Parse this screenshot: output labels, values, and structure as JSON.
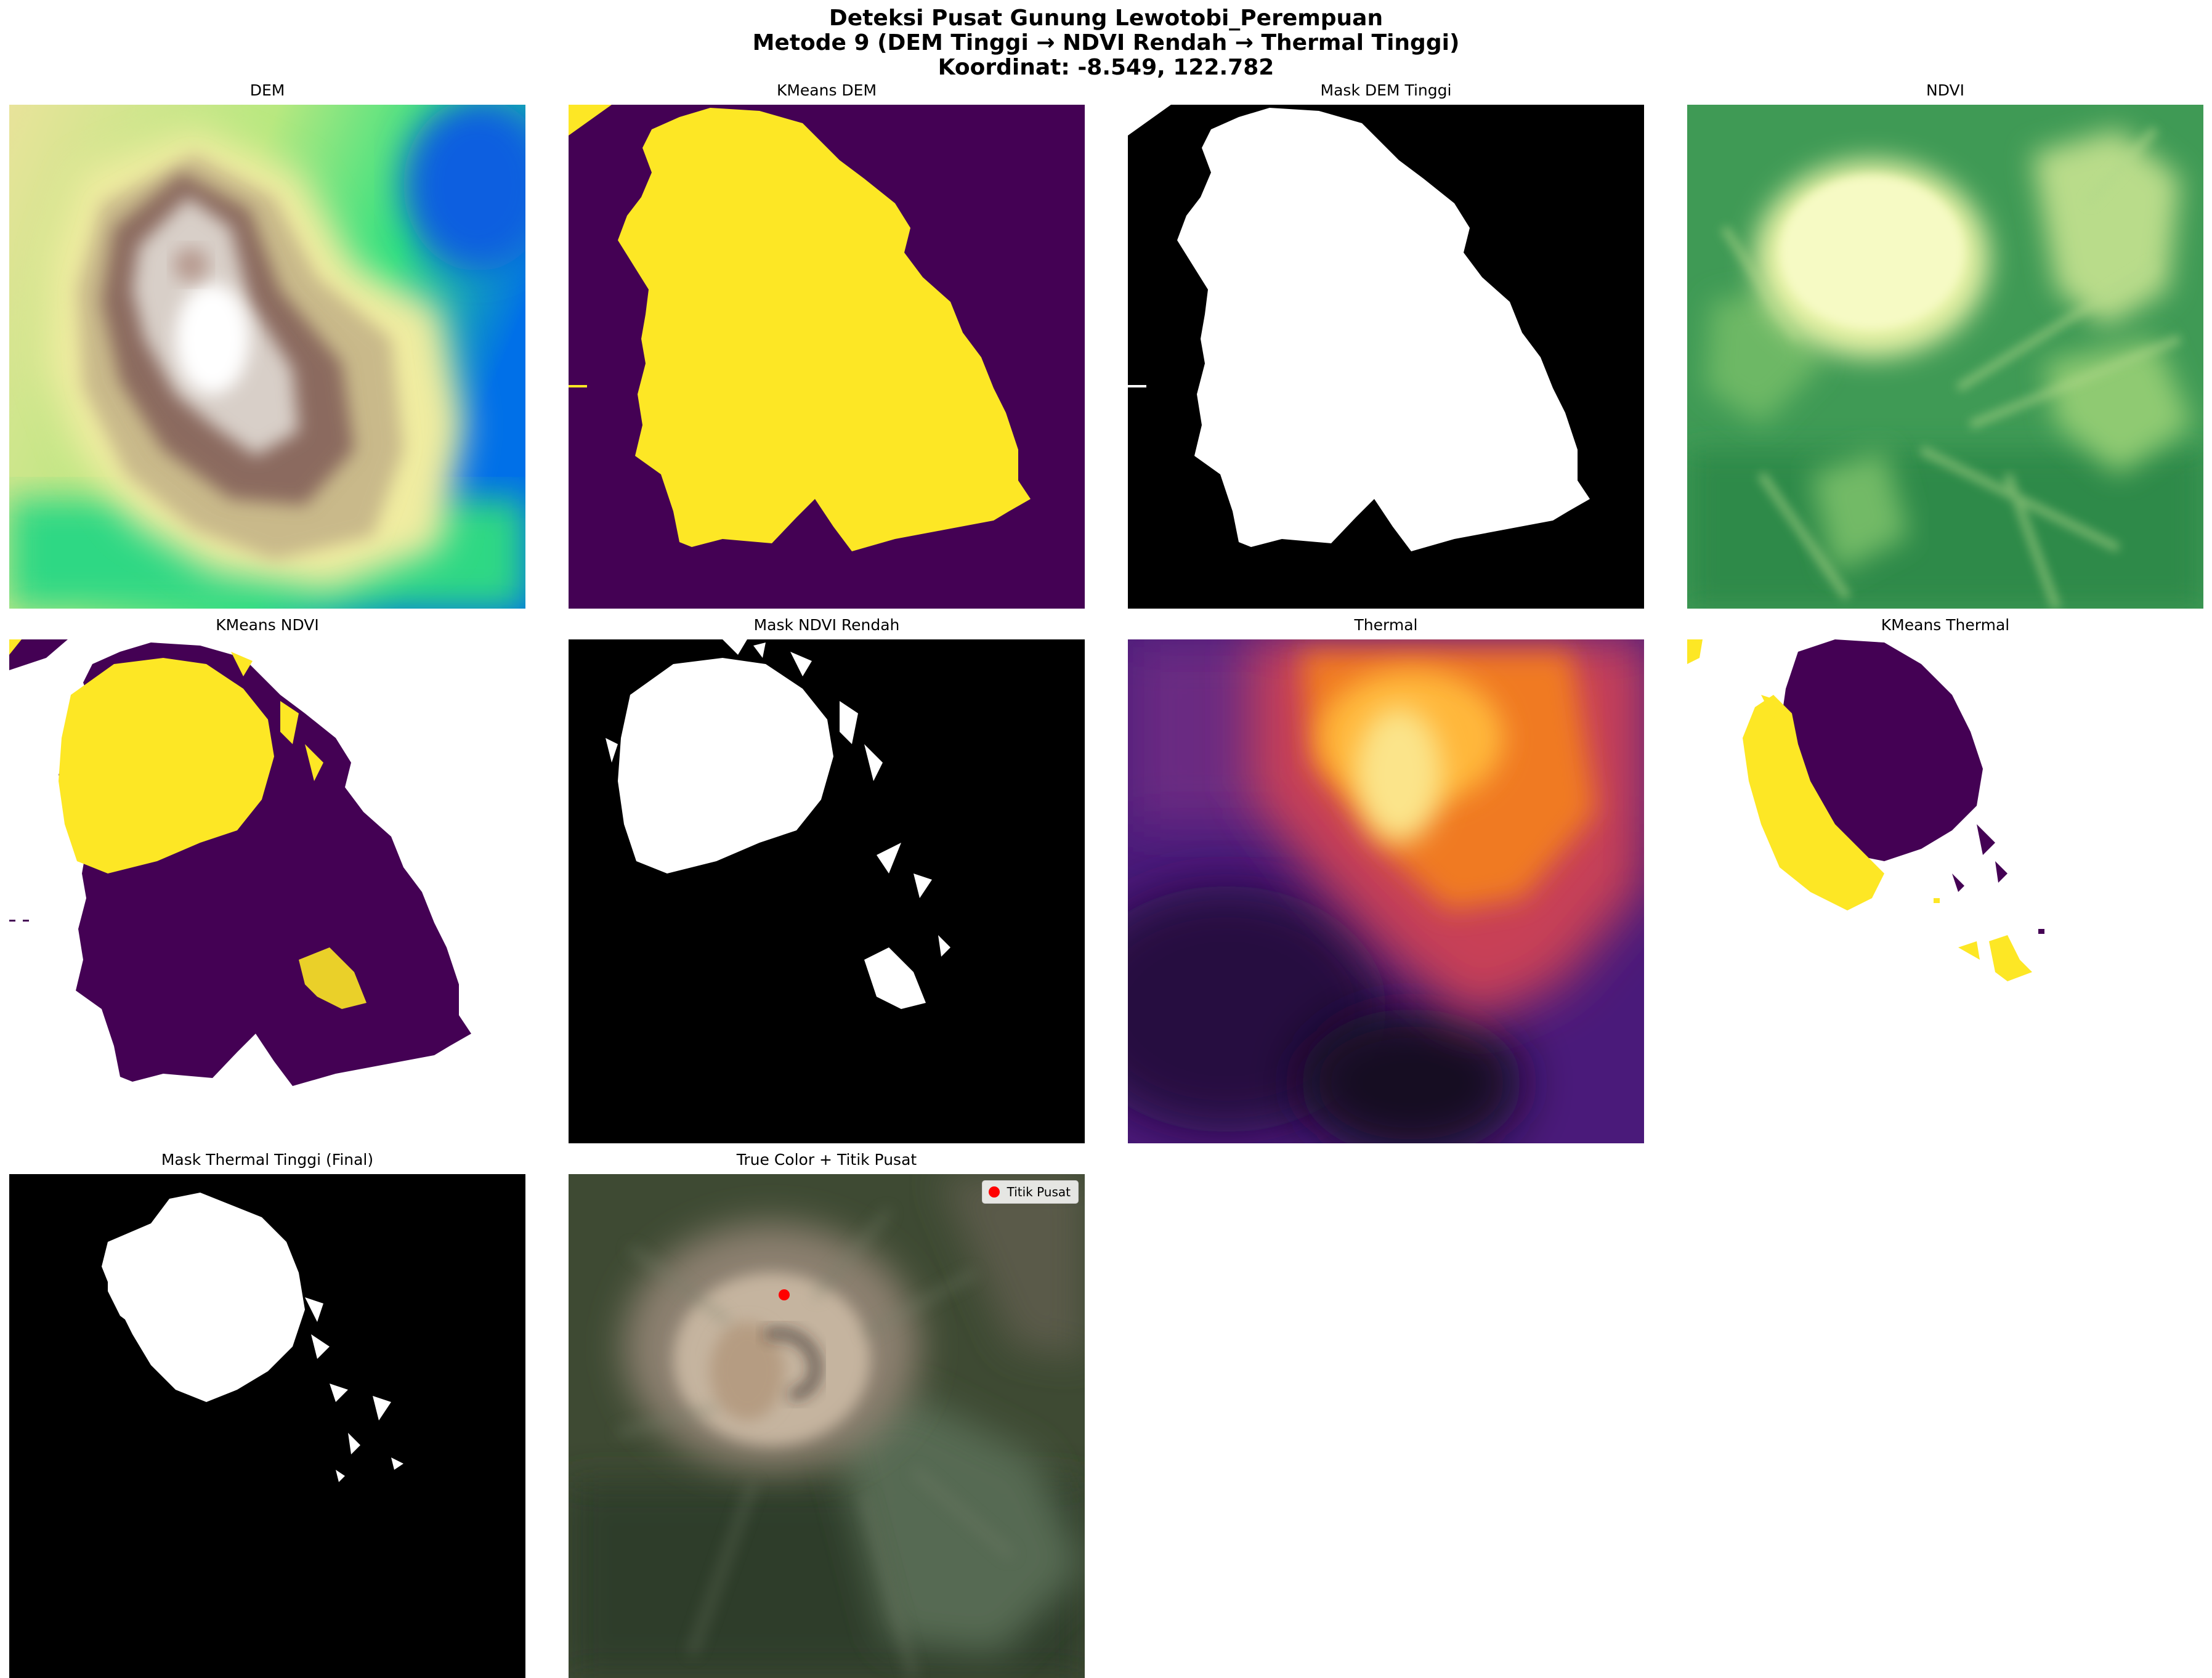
{
  "figure": {
    "title_lines": [
      "Deteksi Pusat Gunung Lewotobi_Perempuan",
      "Metode 9 (DEM Tinggi → NDVI Rendah → Thermal Tinggi)",
      "Koordinat: -8.549, 122.782"
    ]
  },
  "panels": [
    {
      "title": "DEM",
      "colormap": "terrain"
    },
    {
      "title": "KMeans DEM",
      "colormap": "viridis"
    },
    {
      "title": "Mask DEM Tinggi",
      "colormap": "gray"
    },
    {
      "title": "NDVI",
      "colormap": "YlGn"
    },
    {
      "title": "KMeans NDVI",
      "colormap": "viridis"
    },
    {
      "title": "Mask NDVI Rendah",
      "colormap": "gray"
    },
    {
      "title": "Thermal",
      "colormap": "inferno"
    },
    {
      "title": "KMeans Thermal",
      "colormap": "viridis"
    },
    {
      "title": "Mask Thermal Tinggi (Final)",
      "colormap": "gray"
    },
    {
      "title": "True Color + Titik Pusat",
      "colormap": "rgb"
    }
  ],
  "legend": {
    "label": "Titik Pusat",
    "color": "#ff0000",
    "icon": "red-dot-marker"
  },
  "colors": {
    "viridis_purple": "#440154",
    "viridis_yellow": "#fde725",
    "mask_white": "#ffffff",
    "mask_black": "#000000",
    "marker_red": "#ff0000"
  }
}
